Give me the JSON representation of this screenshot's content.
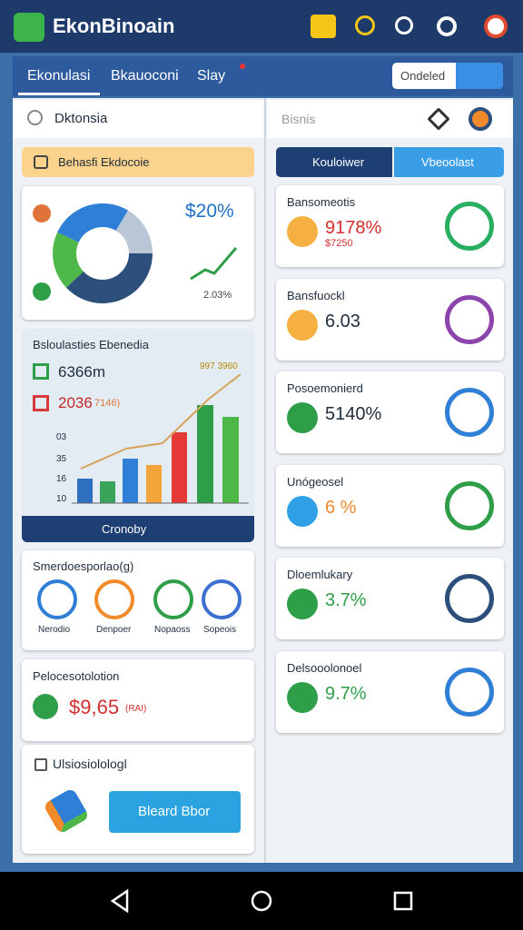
{
  "header": {
    "title": "EkonBinoain"
  },
  "tabs": [
    "Ekonulasi",
    "Bkauoconi",
    "Slay"
  ],
  "search_box": "Ondeled",
  "left": {
    "search": "Dktonsia",
    "banner": "Behasfi Ekdocoie",
    "donut_card": {
      "main": "$20%",
      "sub": "2.03%"
    },
    "chart_card": {
      "title": "Bsloulasties Ebenedia",
      "row1": "6366m",
      "row2": "2036",
      "row2_note": "7146)",
      "legend_note": "997 3960",
      "axis": [
        "03",
        "35",
        "16",
        "10"
      ],
      "button": "Cronoby"
    },
    "icons_card": {
      "title": "Smerdoesporlao(g)",
      "items": [
        "Nerodio",
        "Denpoer",
        "Nopaoss",
        "Sopeois"
      ]
    },
    "price_card": {
      "title": "Pelocesotolotion",
      "value": "$9,65",
      "note": "(RAI)"
    },
    "action_card": {
      "title": "Ulsiosiolologl",
      "button": "Bleard Bbor"
    }
  },
  "right": {
    "search": "Bisnis",
    "dropdowns": [
      "Kouloiwer",
      "Vbeoolast"
    ],
    "cards": [
      {
        "title": "Bansomeotis",
        "value": "9178%",
        "sub": "$7250"
      },
      {
        "title": "Bansfuockl",
        "value": "6.03"
      },
      {
        "title": "Posoemonierd",
        "value": "5140%"
      },
      {
        "title": "Unógeosel",
        "value": "6 %"
      },
      {
        "title": "Dloemlukary",
        "value": "3.7%"
      },
      {
        "title": "Delsooolonoel",
        "value": "9.7%"
      }
    ]
  }
}
